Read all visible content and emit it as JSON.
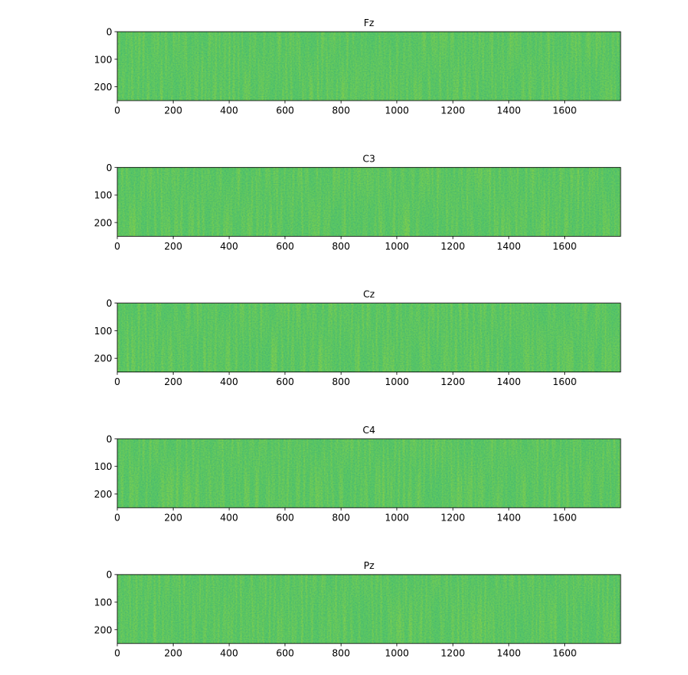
{
  "chart_data": [
    {
      "type": "heatmap",
      "title": "Fz",
      "xlabel": "",
      "ylabel": "",
      "xlim": [
        0,
        1800
      ],
      "ylim": [
        250,
        0
      ],
      "x_ticks": [
        "0",
        "200",
        "400",
        "600",
        "800",
        "1000",
        "1200",
        "1400",
        "1600"
      ],
      "y_ticks": [
        "0",
        "100",
        "200"
      ],
      "colormap": "viridis",
      "value_range_shown": "mid-to-upper (green to yellow-green noise)",
      "grid": false
    },
    {
      "type": "heatmap",
      "title": "C3",
      "xlabel": "",
      "ylabel": "",
      "xlim": [
        0,
        1800
      ],
      "ylim": [
        250,
        0
      ],
      "x_ticks": [
        "0",
        "200",
        "400",
        "600",
        "800",
        "1000",
        "1200",
        "1400",
        "1600"
      ],
      "y_ticks": [
        "0",
        "100",
        "200"
      ],
      "colormap": "viridis",
      "value_range_shown": "mid-to-upper (green to yellow-green noise)",
      "grid": false
    },
    {
      "type": "heatmap",
      "title": "Cz",
      "xlabel": "",
      "ylabel": "",
      "xlim": [
        0,
        1800
      ],
      "ylim": [
        250,
        0
      ],
      "x_ticks": [
        "0",
        "200",
        "400",
        "600",
        "800",
        "1000",
        "1200",
        "1400",
        "1600"
      ],
      "y_ticks": [
        "0",
        "100",
        "200"
      ],
      "colormap": "viridis",
      "value_range_shown": "mid-to-upper (green to yellow-green noise)",
      "grid": false
    },
    {
      "type": "heatmap",
      "title": "C4",
      "xlabel": "",
      "ylabel": "",
      "xlim": [
        0,
        1800
      ],
      "ylim": [
        250,
        0
      ],
      "x_ticks": [
        "0",
        "200",
        "400",
        "600",
        "800",
        "1000",
        "1200",
        "1400",
        "1600"
      ],
      "y_ticks": [
        "0",
        "100",
        "200"
      ],
      "colormap": "viridis",
      "value_range_shown": "mid-to-upper (green to yellow-green noise)",
      "grid": false
    },
    {
      "type": "heatmap",
      "title": "Pz",
      "xlabel": "",
      "ylabel": "",
      "xlim": [
        0,
        1800
      ],
      "ylim": [
        250,
        0
      ],
      "x_ticks": [
        "0",
        "200",
        "400",
        "600",
        "800",
        "1000",
        "1200",
        "1400",
        "1600"
      ],
      "y_ticks": [
        "0",
        "100",
        "200"
      ],
      "colormap": "viridis",
      "value_range_shown": "mid-to-upper (green to yellow-green noise)",
      "grid": false
    }
  ],
  "colors": {
    "background": "#ffffff",
    "axis": "#000000",
    "heat_low": "#2db27d",
    "heat_mid": "#5ec962",
    "heat_high": "#b5de2b"
  }
}
